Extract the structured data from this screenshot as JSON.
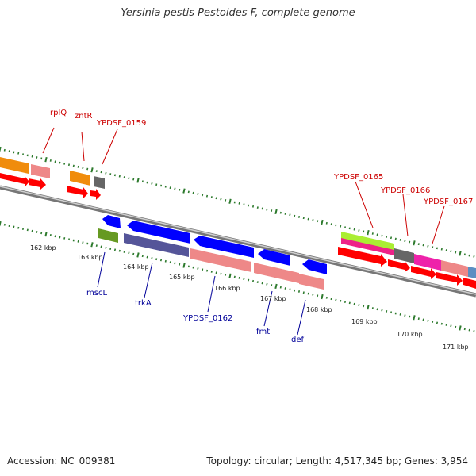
{
  "title": "Yersinia pestis Pestoides F, complete genome",
  "footer": {
    "accession": "Accession: NC_009381",
    "summary": "Topology: circular; Length: 4,517,345 bp; Genes: 3,954"
  },
  "colors": {
    "forward_label": "#cc0000",
    "reverse_label": "#000099",
    "backbone": "#888888",
    "tick": "#2d7a2d"
  },
  "scale_labels": [
    "162 kbp",
    "163 kbp",
    "164 kbp",
    "165 kbp",
    "166 kbp",
    "167 kbp",
    "168 kbp",
    "169 kbp",
    "170 kbp",
    "171 kbp"
  ],
  "forward_labels": [
    "rplQ",
    "zntR",
    "YPDSF_0159",
    "YPDSF_0165",
    "YPDSF_0166",
    "YPDSF_0167"
  ],
  "reverse_labels": [
    "mscL",
    "trkA",
    "YPDSF_0162",
    "fmt",
    "def"
  ]
}
